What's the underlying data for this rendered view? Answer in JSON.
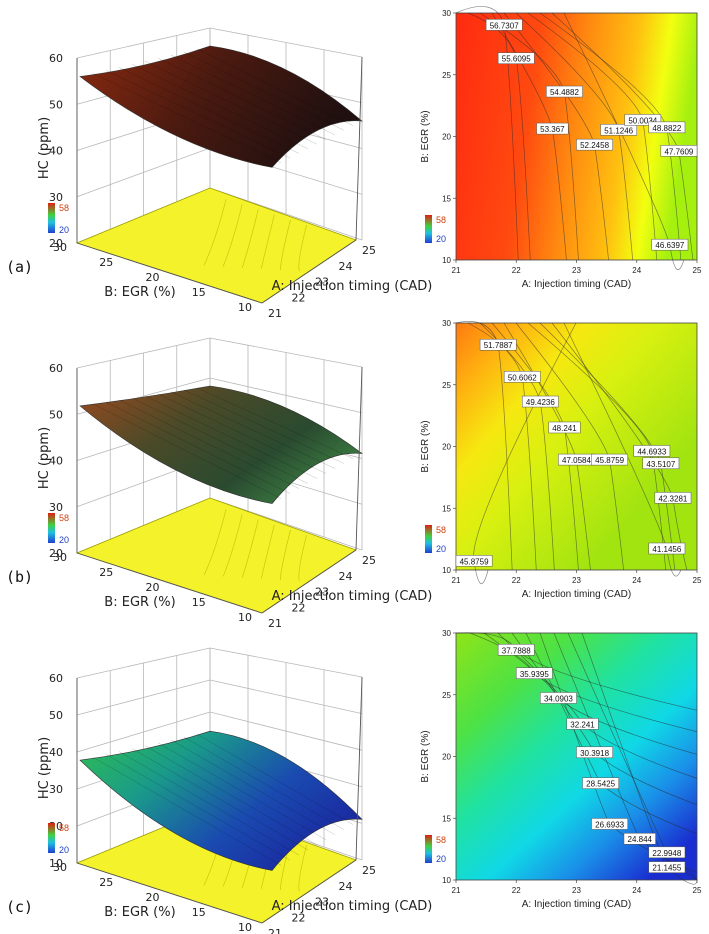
{
  "chart_data": [
    {
      "panel": "(a)",
      "type": "surface3d",
      "zlabel": "HC (ppm)",
      "xlabel": "A: Injection timing (CAD)",
      "ylabel": "B: EGR (%)",
      "xticks": [
        "21",
        "22",
        "23",
        "24",
        "25"
      ],
      "yticks": [
        "10",
        "15",
        "20",
        "25",
        "30"
      ],
      "zticks": [
        "20",
        "30",
        "40",
        "50",
        "60"
      ],
      "zlim": [
        20,
        60
      ],
      "legend": {
        "high": "58",
        "low": "20"
      },
      "surface_z": [
        [
          56.0,
          55.8,
          55.5,
          54.0,
          52.0
        ],
        [
          52.0,
          51.0,
          49.0,
          47.0,
          46.0
        ]
      ]
    },
    {
      "panel": "(a)",
      "type": "contour",
      "xlabel": "A: Injection timing (CAD)",
      "ylabel": "B: EGR (%)",
      "xticks": [
        "21",
        "22",
        "23",
        "24",
        "25"
      ],
      "yticks": [
        "10",
        "15",
        "20",
        "25",
        "30"
      ],
      "xlim": [
        21,
        25
      ],
      "ylim": [
        10,
        30
      ],
      "legend": {
        "high": "58",
        "low": "20"
      },
      "contours": [
        {
          "label": "56.7307",
          "x": 21.8,
          "y": 29.0
        },
        {
          "label": "55.6095",
          "x": 22.0,
          "y": 26.3
        },
        {
          "label": "54.4882",
          "x": 22.8,
          "y": 23.6
        },
        {
          "label": "53.367",
          "x": 22.6,
          "y": 20.6
        },
        {
          "label": "52.2458",
          "x": 23.3,
          "y": 19.3
        },
        {
          "label": "51.1246",
          "x": 23.7,
          "y": 20.5
        },
        {
          "label": "50.0034",
          "x": 24.1,
          "y": 21.3
        },
        {
          "label": "48.8822",
          "x": 24.5,
          "y": 20.7
        },
        {
          "label": "47.7609",
          "x": 24.7,
          "y": 18.8
        },
        {
          "label": "46.6397",
          "x": 24.55,
          "y": 11.2
        }
      ]
    },
    {
      "panel": "(b)",
      "type": "surface3d",
      "zlabel": "HC (ppm)",
      "xlabel": "A: Injection timing (CAD)",
      "ylabel": "B: EGR (%)",
      "xticks": [
        "21",
        "22",
        "23",
        "24",
        "25"
      ],
      "yticks": [
        "10",
        "15",
        "20",
        "25",
        "30"
      ],
      "zticks": [
        "20",
        "30",
        "40",
        "50",
        "60"
      ],
      "zlim": [
        20,
        60
      ],
      "legend": {
        "high": "58",
        "low": "20"
      },
      "surface_z": [
        [
          51.8,
          50.5,
          48.0,
          45.0,
          44.0
        ],
        [
          46.0,
          45.0,
          43.5,
          42.0,
          41.1
        ]
      ]
    },
    {
      "panel": "(b)",
      "type": "contour",
      "xlabel": "A: Injection timing (CAD)",
      "ylabel": "B: EGR (%)",
      "xticks": [
        "21",
        "22",
        "23",
        "24",
        "25"
      ],
      "yticks": [
        "10",
        "15",
        "20",
        "25",
        "30"
      ],
      "xlim": [
        21,
        25
      ],
      "ylim": [
        10,
        30
      ],
      "legend": {
        "high": "58",
        "low": "20"
      },
      "contours": [
        {
          "label": "51.7887",
          "x": 21.7,
          "y": 28.2
        },
        {
          "label": "50.6062",
          "x": 22.1,
          "y": 25.6
        },
        {
          "label": "49.4236",
          "x": 22.4,
          "y": 23.6
        },
        {
          "label": "48.241",
          "x": 22.8,
          "y": 21.5
        },
        {
          "label": "47.0584",
          "x": 23.0,
          "y": 18.9
        },
        {
          "label": "45.8759",
          "x": 23.55,
          "y": 18.9
        },
        {
          "label": "44.6933",
          "x": 24.25,
          "y": 19.6
        },
        {
          "label": "43.5107",
          "x": 24.4,
          "y": 18.6
        },
        {
          "label": "42.3281",
          "x": 24.6,
          "y": 15.8
        },
        {
          "label": "41.1456",
          "x": 24.5,
          "y": 11.7
        },
        {
          "label": "45.8759",
          "x": 21.3,
          "y": 10.7
        }
      ]
    },
    {
      "panel": "(c)",
      "type": "surface3d",
      "zlabel": "HC (ppm)",
      "xlabel": "A: Injection timing (CAD)",
      "ylabel": "B: EGR (%)",
      "xticks": [
        "21",
        "22",
        "23",
        "24",
        "25"
      ],
      "yticks": [
        "10",
        "15",
        "20",
        "25",
        "30"
      ],
      "zticks": [
        "10",
        "20",
        "30",
        "40",
        "50",
        "60"
      ],
      "zlim": [
        10,
        60
      ],
      "legend": {
        "high": "58",
        "low": "20"
      },
      "surface_z": [
        [
          37.8,
          36.0,
          34.0,
          32.0,
          30.4
        ],
        [
          28.0,
          25.0,
          22.0,
          20.0,
          21.1
        ]
      ]
    },
    {
      "panel": "(c)",
      "type": "contour",
      "xlabel": "A: Injection timing (CAD)",
      "ylabel": "B: EGR (%)",
      "xticks": [
        "21",
        "22",
        "23",
        "24",
        "25"
      ],
      "yticks": [
        "10",
        "15",
        "20",
        "25",
        "30"
      ],
      "xlim": [
        21,
        25
      ],
      "ylim": [
        10,
        30
      ],
      "legend": {
        "high": "58",
        "low": "20"
      },
      "contours": [
        {
          "label": "37.7888",
          "x": 22.0,
          "y": 28.6
        },
        {
          "label": "35.9395",
          "x": 22.3,
          "y": 26.7
        },
        {
          "label": "34.0903",
          "x": 22.7,
          "y": 24.7
        },
        {
          "label": "32.241",
          "x": 23.1,
          "y": 22.6
        },
        {
          "label": "30.3918",
          "x": 23.3,
          "y": 20.3
        },
        {
          "label": "28.5425",
          "x": 23.4,
          "y": 17.8
        },
        {
          "label": "26.6933",
          "x": 23.55,
          "y": 14.5
        },
        {
          "label": "24.844",
          "x": 24.05,
          "y": 13.3
        },
        {
          "label": "22.9948",
          "x": 24.5,
          "y": 12.2
        },
        {
          "label": "21.1455",
          "x": 24.5,
          "y": 11.0
        }
      ]
    }
  ],
  "panel_labels": [
    "(a)",
    "(b)",
    "(c)"
  ]
}
